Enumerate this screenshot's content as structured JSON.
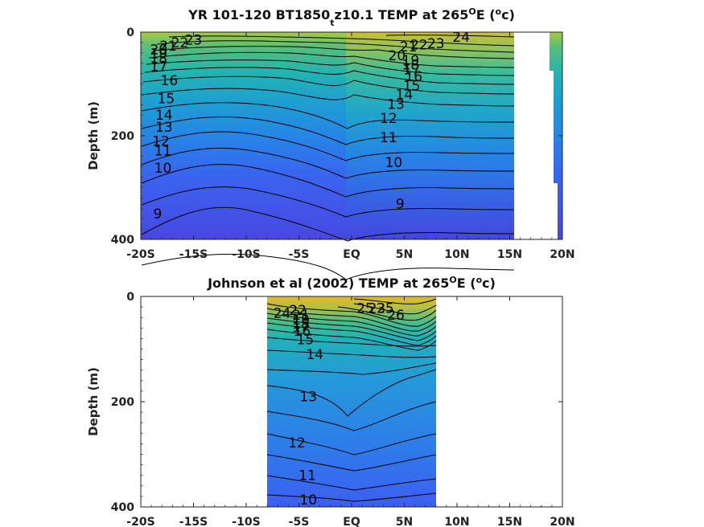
{
  "chart_data": [
    {
      "type": "contour",
      "title": {
        "main": "YR 101-120 BT1850",
        "sub": "t",
        "rest": "z10.1 TEMP at 265",
        "deg1": "O",
        "mid": "E (",
        "deg2": "o",
        "end": "c)"
      },
      "ylabel": "Depth (m)",
      "xlim": [
        -20,
        20
      ],
      "ylim": [
        0,
        400
      ],
      "x_ticks": [
        -20,
        -15,
        -10,
        -5,
        0,
        5,
        10,
        15,
        20
      ],
      "x_tick_labels": [
        "-20S",
        "-15S",
        "-10S",
        "-5S",
        "EQ",
        "5N",
        "10N",
        "15N",
        "20N"
      ],
      "y_ticks": [
        0,
        200,
        400
      ],
      "y_tick_labels": [
        "0",
        "200",
        "400"
      ],
      "data_x_range": [
        -20,
        15
      ],
      "contour_levels": [
        9,
        10,
        11,
        12,
        13,
        14,
        15,
        16,
        17,
        18,
        19,
        20,
        21,
        22,
        23,
        24
      ],
      "contour_labels": [
        {
          "text": "23",
          "x": -15,
          "depth": 15
        },
        {
          "text": "22",
          "x": -16.3,
          "depth": 20
        },
        {
          "text": "21",
          "x": -17.4,
          "depth": 26
        },
        {
          "text": "20",
          "x": -18.3,
          "depth": 33
        },
        {
          "text": "18",
          "x": -18.3,
          "depth": 50
        },
        {
          "text": "19",
          "x": -18.3,
          "depth": 41
        },
        {
          "text": "17",
          "x": -18.3,
          "depth": 66
        },
        {
          "text": "16",
          "x": -17.3,
          "depth": 93
        },
        {
          "text": "15",
          "x": -17.6,
          "depth": 128
        },
        {
          "text": "14",
          "x": -17.8,
          "depth": 160
        },
        {
          "text": "13",
          "x": -17.8,
          "depth": 183
        },
        {
          "text": "12",
          "x": -18.1,
          "depth": 210
        },
        {
          "text": "11",
          "x": -17.9,
          "depth": 229
        },
        {
          "text": "10",
          "x": -17.9,
          "depth": 262
        },
        {
          "text": "9",
          "x": -18.4,
          "depth": 350
        },
        {
          "text": "24",
          "x": 10.4,
          "depth": 9
        },
        {
          "text": "23",
          "x": 8,
          "depth": 22
        },
        {
          "text": "22",
          "x": 6.4,
          "depth": 24
        },
        {
          "text": "21",
          "x": 5.4,
          "depth": 28
        },
        {
          "text": "20",
          "x": 4.3,
          "depth": 45
        },
        {
          "text": "19",
          "x": 5.6,
          "depth": 54
        },
        {
          "text": "18",
          "x": 5.6,
          "depth": 63
        },
        {
          "text": "17",
          "x": 5.7,
          "depth": 72
        },
        {
          "text": "16",
          "x": 5.9,
          "depth": 85
        },
        {
          "text": "15",
          "x": 5.7,
          "depth": 103
        },
        {
          "text": "14",
          "x": 5,
          "depth": 120
        },
        {
          "text": "13",
          "x": 4.2,
          "depth": 139
        },
        {
          "text": "12",
          "x": 3.5,
          "depth": 166
        },
        {
          "text": "11",
          "x": 3.5,
          "depth": 203
        },
        {
          "text": "10",
          "x": 4,
          "depth": 251
        },
        {
          "text": "9",
          "x": 4.6,
          "depth": 331
        }
      ],
      "colormap": "parula"
    },
    {
      "type": "contour",
      "title": {
        "main": "Johnson et al (2002) TEMP at 265",
        "deg1": "O",
        "mid": "E (",
        "deg2": "o",
        "end": "c)"
      },
      "ylabel": "Depth (m)",
      "xlim": [
        -20,
        20
      ],
      "ylim": [
        0,
        400
      ],
      "x_ticks": [
        -20,
        -15,
        -10,
        -5,
        0,
        5,
        10,
        15,
        20
      ],
      "x_tick_labels": [
        "-20S",
        "-15S",
        "-10S",
        "-5S",
        "EQ",
        "5N",
        "10N",
        "15N",
        "20N"
      ],
      "y_ticks": [
        0,
        200,
        400
      ],
      "y_tick_labels": [
        "0",
        "200",
        "400"
      ],
      "data_x_range": [
        -8,
        8
      ],
      "contour_levels": [
        10,
        11,
        12,
        13,
        14,
        15,
        16,
        17,
        18,
        19,
        20,
        21,
        22,
        23,
        24,
        25,
        26,
        27
      ],
      "contour_labels": [
        {
          "text": "24",
          "x": -6.6,
          "depth": 31
        },
        {
          "text": "22",
          "x": -5.1,
          "depth": 26
        },
        {
          "text": "21",
          "x": -4.8,
          "depth": 35
        },
        {
          "text": "19",
          "x": -4.8,
          "depth": 44
        },
        {
          "text": "18",
          "x": -4.8,
          "depth": 52
        },
        {
          "text": "17",
          "x": -4.8,
          "depth": 58
        },
        {
          "text": "16",
          "x": -4.7,
          "depth": 66
        },
        {
          "text": "15",
          "x": -4.4,
          "depth": 82
        },
        {
          "text": "14",
          "x": -3.5,
          "depth": 110
        },
        {
          "text": "13",
          "x": -4.1,
          "depth": 190
        },
        {
          "text": "12",
          "x": -5.2,
          "depth": 278
        },
        {
          "text": "11",
          "x": -4.2,
          "depth": 340
        },
        {
          "text": "10",
          "x": -4.1,
          "depth": 386
        },
        {
          "text": "25",
          "x": 1.3,
          "depth": 22
        },
        {
          "text": "23",
          "x": 2.4,
          "depth": 22
        },
        {
          "text": "25",
          "x": 3.2,
          "depth": 22
        },
        {
          "text": "26",
          "x": 4.2,
          "depth": 35
        }
      ],
      "colormap": "parula"
    }
  ]
}
